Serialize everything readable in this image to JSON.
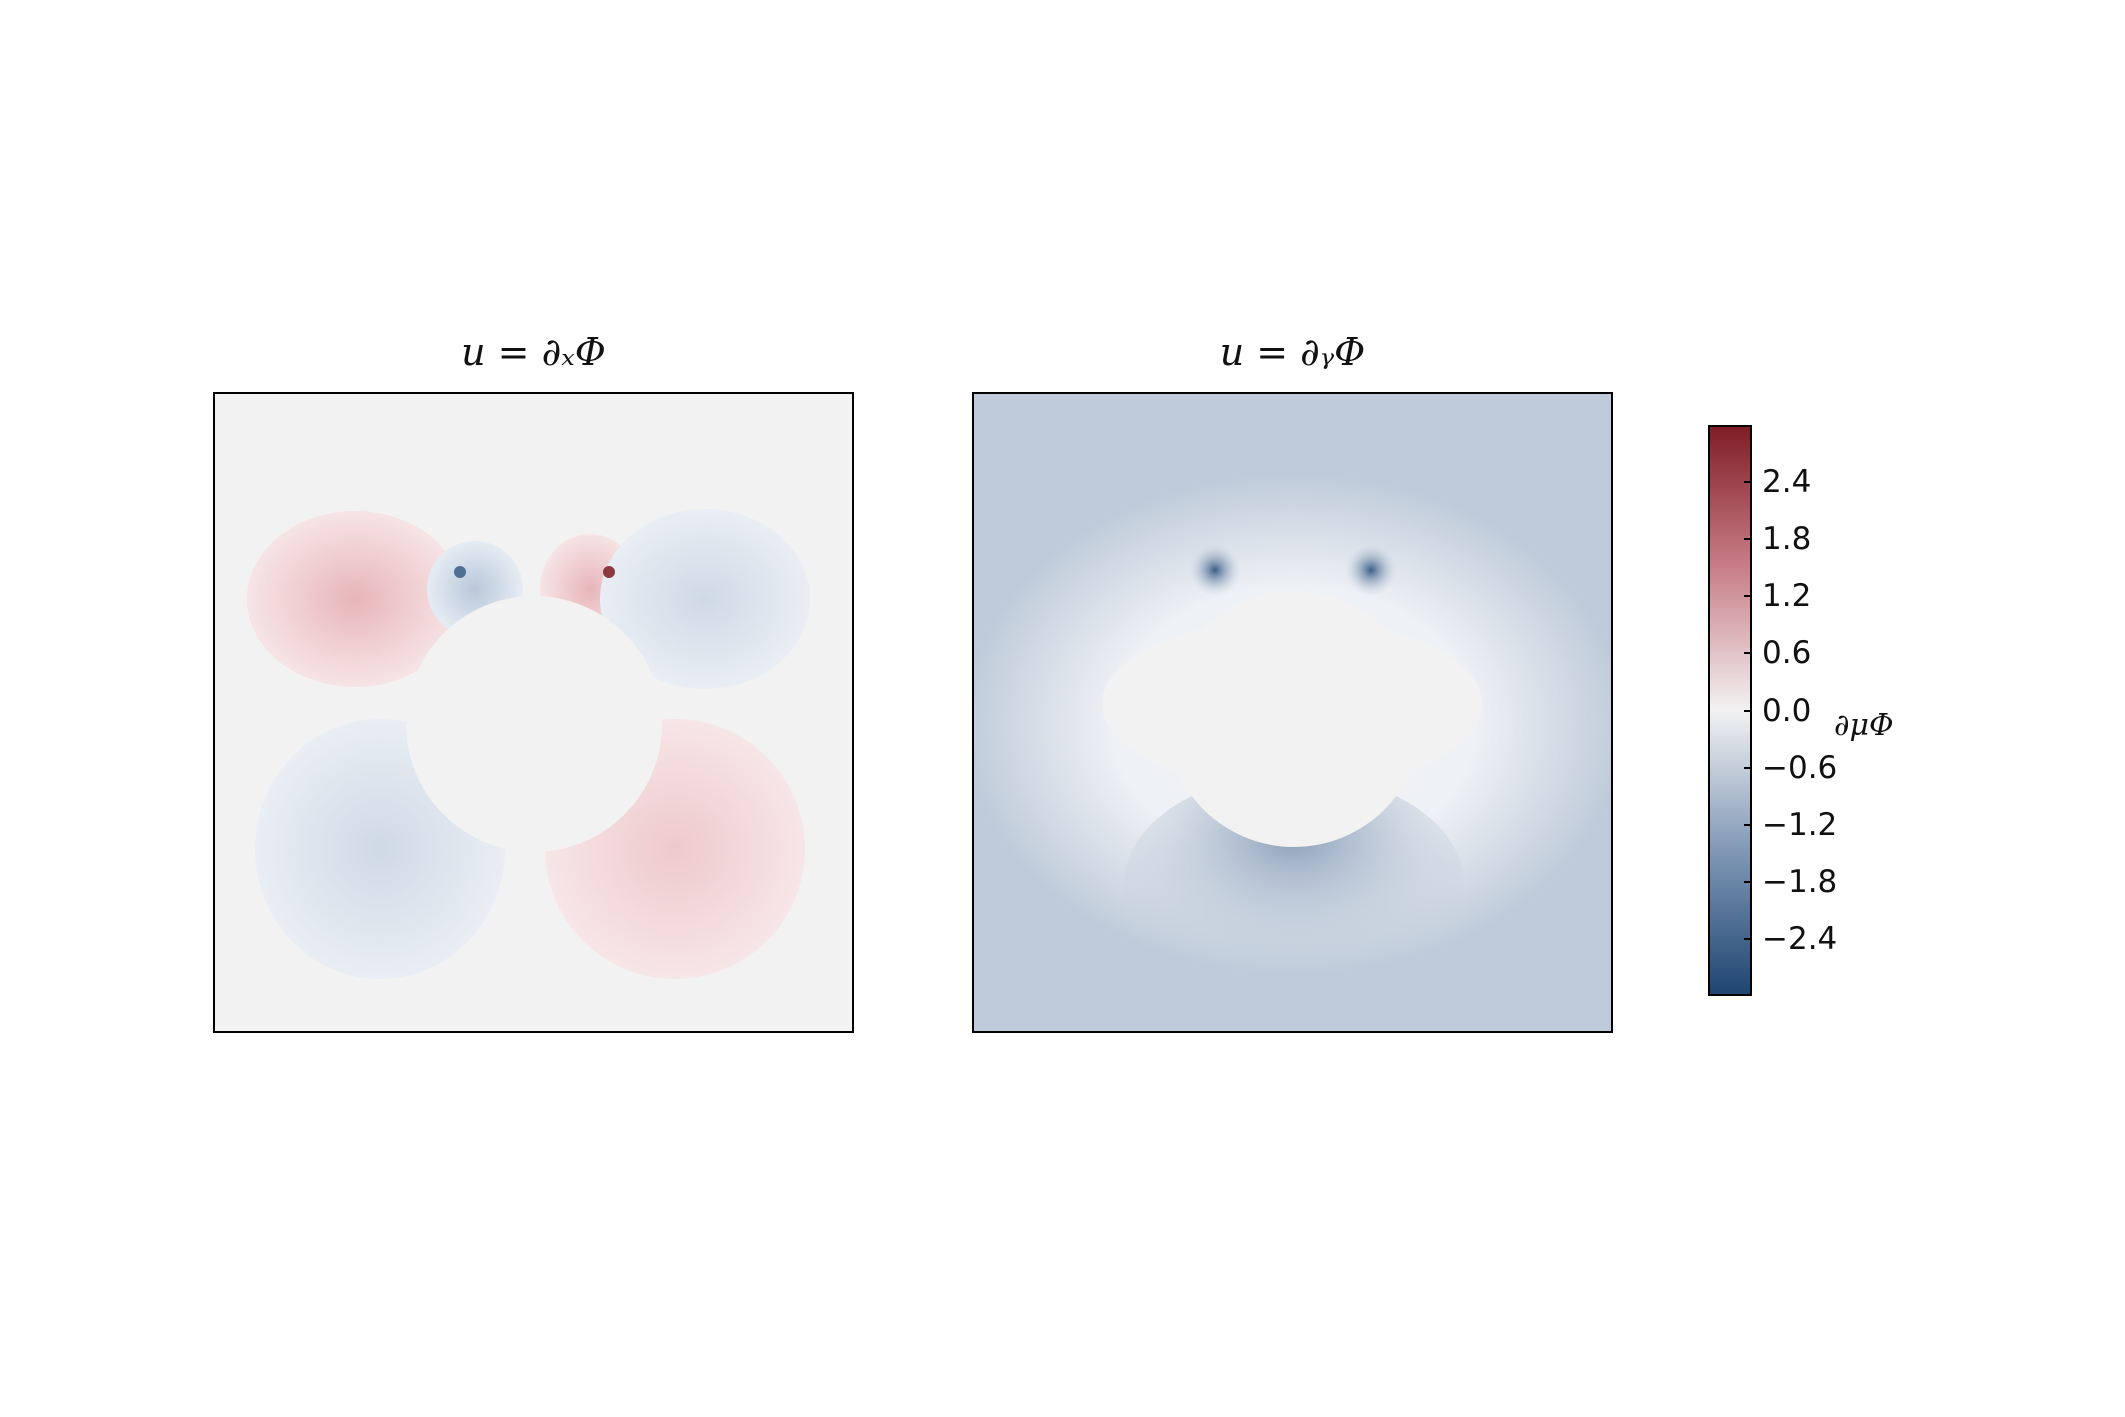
{
  "chart_data": [
    {
      "type": "heatmap",
      "title": "u = ∂ₓΦ",
      "description_field": "x-derivative of potential around circular obstacle",
      "background_value": 0.0,
      "lobes": [
        {
          "position": "upper-left",
          "value": 0.3
        },
        {
          "position": "upper-inner-left",
          "value": -0.6
        },
        {
          "position": "upper-inner-right",
          "value": 0.6
        },
        {
          "position": "upper-right",
          "value": -0.3
        },
        {
          "position": "lower-left",
          "value": -0.3
        },
        {
          "position": "lower-right",
          "value": 0.3
        }
      ],
      "xlabel": "",
      "ylabel": ""
    },
    {
      "type": "heatmap",
      "title": "u = ∂ᵧΦ",
      "background_value": -0.9,
      "obstacle_value": 0.0,
      "lobes": [
        {
          "position": "top-left-spike",
          "value": -2.0
        },
        {
          "position": "top-right-spike",
          "value": -2.0
        },
        {
          "position": "bottom-shadow",
          "value": -1.2
        }
      ],
      "xlabel": "",
      "ylabel": ""
    }
  ],
  "colorbar": {
    "label": "∂μΦ",
    "range": [
      -3.0,
      3.0
    ],
    "ticks": [
      "2.4",
      "1.8",
      "1.2",
      "0.6",
      "0.0",
      "−0.6",
      "−1.2",
      "−1.8",
      "−2.4"
    ],
    "tick_values": [
      2.4,
      1.8,
      1.2,
      0.6,
      0.0,
      -0.6,
      -1.2,
      -1.8,
      -2.4
    ],
    "colors": {
      "max": "#7f1d26",
      "mid": "#f2f2f2",
      "min": "#1f4571"
    }
  },
  "titles": {
    "left": "u = ∂ₓΦ",
    "right": "u = ∂ᵧΦ"
  }
}
